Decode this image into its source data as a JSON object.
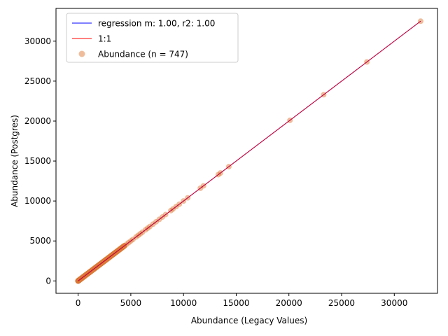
{
  "chart_data": {
    "type": "scatter",
    "title": "",
    "xlabel": "Abundance (Legacy Values)",
    "ylabel": "Abundance (Postgres)",
    "xlim": [
      -2100,
      34100
    ],
    "ylim": [
      -1550,
      34100
    ],
    "xticks": [
      0,
      5000,
      10000,
      15000,
      20000,
      25000,
      30000
    ],
    "yticks": [
      0,
      5000,
      10000,
      15000,
      20000,
      25000,
      30000
    ],
    "grid": false,
    "legend_position": "top-left",
    "legend": [
      {
        "kind": "line",
        "label": "regression m: 1.00, r2: 1.00",
        "color": "#0000ff"
      },
      {
        "kind": "line",
        "label": "1:1",
        "color": "#ff0000"
      },
      {
        "kind": "marker",
        "label": "Abundance (n = 747)",
        "color": "#e07b39"
      }
    ],
    "lines": [
      {
        "label": "regression m: 1.00, r2: 1.00",
        "color": "#0000ff",
        "x": [
          0,
          32500
        ],
        "y": [
          0,
          32500
        ]
      },
      {
        "label": "1:1",
        "color": "#ff0000",
        "x": [
          0,
          32500
        ],
        "y": [
          0,
          32500
        ]
      }
    ],
    "scatter": {
      "label": "Abundance (n = 747)",
      "color": "#e07b39",
      "n": 747,
      "highlighted_points": [
        [
          32500,
          32500
        ],
        [
          27400,
          27400
        ],
        [
          23300,
          23300
        ],
        [
          20100,
          20100
        ],
        [
          14300,
          14300
        ],
        [
          13500,
          13500
        ],
        [
          13300,
          13300
        ],
        [
          11900,
          11900
        ],
        [
          11600,
          11600
        ],
        [
          10400,
          10400
        ],
        [
          10000,
          10000
        ],
        [
          9600,
          9600
        ],
        [
          9300,
          9300
        ],
        [
          9000,
          9000
        ],
        [
          8800,
          8800
        ],
        [
          8300,
          8300
        ],
        [
          8000,
          8000
        ],
        [
          7700,
          7700
        ],
        [
          7400,
          7400
        ],
        [
          7100,
          7100
        ],
        [
          6800,
          6800
        ],
        [
          6600,
          6600
        ],
        [
          6400,
          6400
        ],
        [
          6100,
          6100
        ],
        [
          5900,
          5900
        ],
        [
          5700,
          5700
        ],
        [
          5500,
          5500
        ],
        [
          5200,
          5200
        ],
        [
          5000,
          5000
        ],
        [
          4800,
          4800
        ],
        [
          4600,
          4600
        ],
        [
          4400,
          4400
        ]
      ],
      "dense_range": [
        0,
        4400
      ]
    }
  }
}
